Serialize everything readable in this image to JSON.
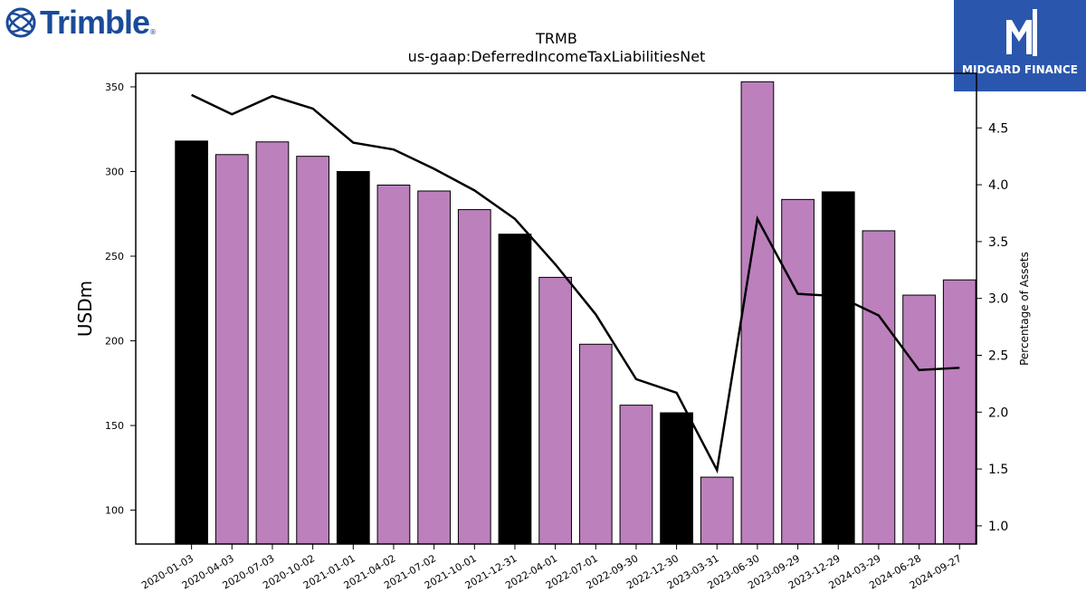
{
  "branding": {
    "company_logo_text": "Trimble",
    "company_logo_mark": "®",
    "company_icon": "globe-icon",
    "watermark_text": "MIDGARD FINANCE",
    "watermark_icon": "midgard-monogram-icon",
    "watermark_color": "#2a57ad",
    "logo_color": "#1b4a9a"
  },
  "chart_data": {
    "type": "bar",
    "title": "TRMB",
    "subtitle": "us-gaap:DeferredIncomeTaxLiabilitiesNet",
    "ylabel": "USDm",
    "y2label": "Percentage of Assets",
    "xlabel": "",
    "ylim": [
      80,
      358
    ],
    "y2lim": [
      0.84,
      4.98
    ],
    "yticks": [
      100,
      150,
      200,
      250,
      300,
      350
    ],
    "y2ticks": [
      1.0,
      1.5,
      2.0,
      2.5,
      3.0,
      3.5,
      4.0,
      4.5
    ],
    "categories": [
      "2020-01-03",
      "2020-04-03",
      "2020-07-03",
      "2020-10-02",
      "2021-01-01",
      "2021-04-02",
      "2021-07-02",
      "2021-10-01",
      "2021-12-31",
      "2022-04-01",
      "2022-07-01",
      "2022-09-30",
      "2022-12-30",
      "2023-03-31",
      "2023-06-30",
      "2023-09-29",
      "2023-12-29",
      "2024-03-29",
      "2024-06-28",
      "2024-09-27"
    ],
    "series": [
      {
        "type": "bar",
        "values": [
          318,
          310,
          317.5,
          309,
          300,
          292,
          288.5,
          277.5,
          263,
          237.5,
          198,
          162,
          157.5,
          119.5,
          353,
          283.5,
          288,
          265,
          227,
          236
        ]
      },
      {
        "type": "line",
        "axis": "right",
        "values": [
          4.79,
          4.62,
          4.78,
          4.67,
          4.37,
          4.31,
          4.14,
          3.95,
          3.7,
          3.3,
          2.86,
          2.29,
          2.17,
          1.49,
          3.7,
          3.04,
          3.02,
          2.85,
          2.37,
          2.39
        ]
      }
    ],
    "bar_colors": {
      "fiscal_year_end": "#000000",
      "other": "#bc80bd"
    },
    "fiscal_year_end_flags": [
      true,
      false,
      false,
      false,
      true,
      false,
      false,
      false,
      true,
      false,
      false,
      false,
      true,
      false,
      false,
      false,
      true,
      false,
      false,
      false
    ],
    "line_color": "#000000",
    "grid": false,
    "legend": "none"
  }
}
